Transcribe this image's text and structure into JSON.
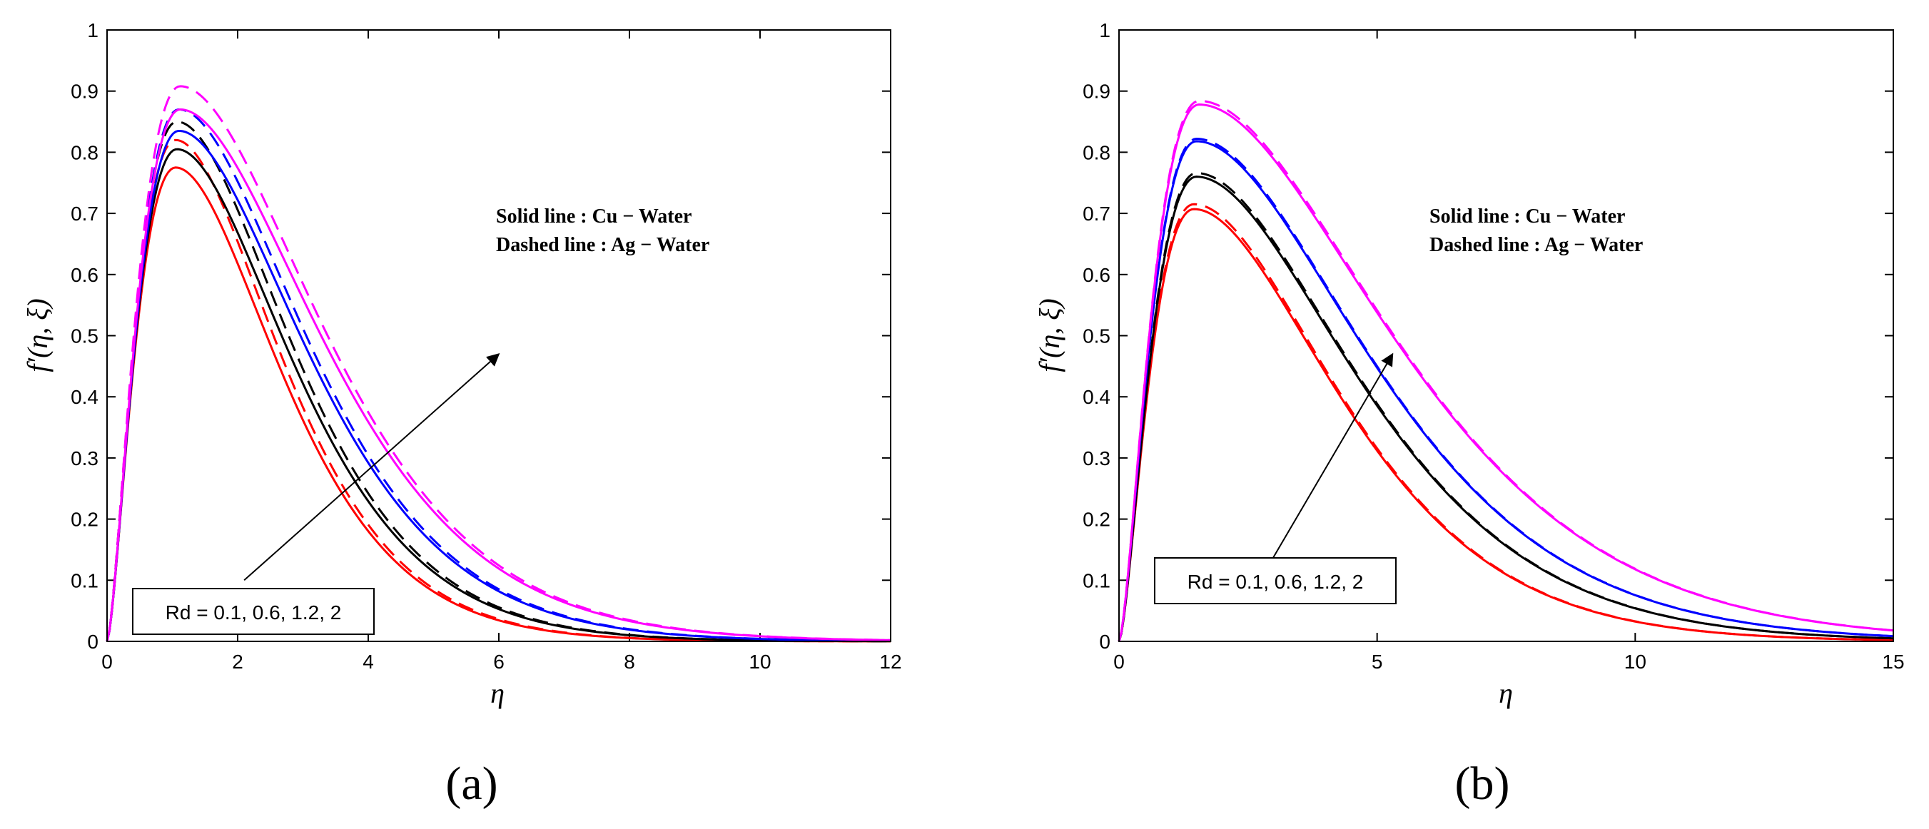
{
  "chart_data": [
    {
      "type": "line",
      "panel_label": "(a)",
      "xlabel": "η",
      "ylabel": "f′(η, ξ)",
      "xlim": [
        0,
        12
      ],
      "ylim": [
        0,
        1
      ],
      "xticks": [
        0,
        2,
        4,
        6,
        8,
        10,
        12
      ],
      "yticks": [
        0,
        0.1,
        0.2,
        0.3,
        0.4,
        0.5,
        0.6,
        0.7,
        0.8,
        0.9,
        1
      ],
      "annotation": {
        "solid_label": "Solid line : Cu − Water",
        "dashed_label": "Dashed line : Ag − Water",
        "rd_label": "Rd = 0.1, 0.6, 1.2, 2",
        "arrow_from": [
          2.1,
          0.1
        ],
        "arrow_to": [
          6.0,
          0.47
        ]
      },
      "series": [
        {
          "name": "Cu-Water Rd=0.1",
          "color": "#ff0000",
          "style": "solid",
          "peak_x": 1.05,
          "peak_y": 0.775,
          "decay": 0.58
        },
        {
          "name": "Ag-Water Rd=0.1",
          "color": "#ff0000",
          "style": "dashed",
          "peak_x": 1.05,
          "peak_y": 0.82,
          "decay": 0.58
        },
        {
          "name": "Cu-Water Rd=0.6",
          "color": "#000000",
          "style": "solid",
          "peak_x": 1.07,
          "peak_y": 0.805,
          "decay": 0.54
        },
        {
          "name": "Ag-Water Rd=0.6",
          "color": "#000000",
          "style": "dashed",
          "peak_x": 1.07,
          "peak_y": 0.85,
          "decay": 0.54
        },
        {
          "name": "Cu-Water Rd=1.2",
          "color": "#0000ff",
          "style": "solid",
          "peak_x": 1.1,
          "peak_y": 0.835,
          "decay": 0.5
        },
        {
          "name": "Ag-Water Rd=1.2",
          "color": "#0000ff",
          "style": "dashed",
          "peak_x": 1.1,
          "peak_y": 0.87,
          "decay": 0.5
        },
        {
          "name": "Cu-Water Rd=2",
          "color": "#ff00ff",
          "style": "solid",
          "peak_x": 1.12,
          "peak_y": 0.87,
          "decay": 0.46
        },
        {
          "name": "Ag-Water Rd=2",
          "color": "#ff00ff",
          "style": "dashed",
          "peak_x": 1.12,
          "peak_y": 0.908,
          "decay": 0.46
        }
      ]
    },
    {
      "type": "line",
      "panel_label": "(b)",
      "xlabel": "η",
      "ylabel": "f′(η, ξ)",
      "xlim": [
        0,
        15
      ],
      "ylim": [
        0,
        1
      ],
      "xticks": [
        0,
        5,
        10,
        15
      ],
      "yticks": [
        0,
        0.1,
        0.2,
        0.3,
        0.4,
        0.5,
        0.6,
        0.7,
        0.8,
        0.9,
        1
      ],
      "annotation": {
        "solid_label": "Solid line : Cu − Water",
        "dashed_label": "Dashed line : Ag − Water",
        "rd_label": "Rd = 0.1, 0.6, 1.2, 2",
        "arrow_from": [
          2.8,
          0.11
        ],
        "arrow_to": [
          5.3,
          0.47
        ]
      },
      "series": [
        {
          "name": "Cu-Water Rd=0.1",
          "color": "#ff0000",
          "style": "solid",
          "peak_x": 1.45,
          "peak_y": 0.707,
          "decay": 0.46
        },
        {
          "name": "Ag-Water Rd=0.1",
          "color": "#ff0000",
          "style": "dashed",
          "peak_x": 1.45,
          "peak_y": 0.715,
          "decay": 0.46
        },
        {
          "name": "Cu-Water Rd=0.6",
          "color": "#000000",
          "style": "solid",
          "peak_x": 1.5,
          "peak_y": 0.76,
          "decay": 0.43
        },
        {
          "name": "Ag-Water Rd=0.6",
          "color": "#000000",
          "style": "dashed",
          "peak_x": 1.5,
          "peak_y": 0.766,
          "decay": 0.43
        },
        {
          "name": "Cu-Water Rd=1.2",
          "color": "#0000ff",
          "style": "solid",
          "peak_x": 1.5,
          "peak_y": 0.818,
          "decay": 0.4
        },
        {
          "name": "Ag-Water Rd=1.2",
          "color": "#0000ff",
          "style": "dashed",
          "peak_x": 1.5,
          "peak_y": 0.822,
          "decay": 0.4
        },
        {
          "name": "Cu-Water Rd=2",
          "color": "#ff00ff",
          "style": "solid",
          "peak_x": 1.55,
          "peak_y": 0.878,
          "decay": 0.37
        },
        {
          "name": "Ag-Water Rd=2",
          "color": "#ff00ff",
          "style": "dashed",
          "peak_x": 1.55,
          "peak_y": 0.884,
          "decay": 0.37
        }
      ]
    }
  ]
}
